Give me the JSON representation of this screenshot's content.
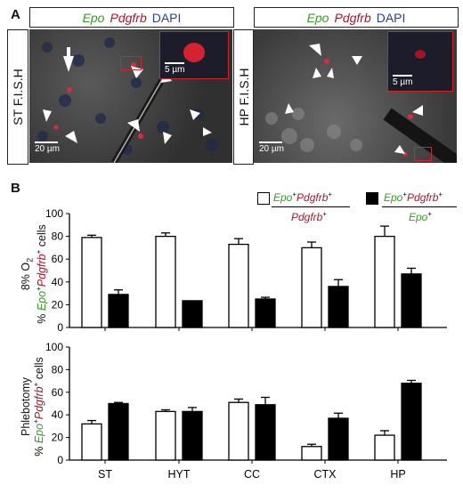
{
  "figure": {
    "panel_a": "A",
    "panel_b": "B",
    "caption": {
      "epo": "Epo",
      "pdgfrb": "Pdgfrb",
      "dapi": "DAPI"
    },
    "left_label": "ST F.I.S.H",
    "right_label": "HP F.I.S.H",
    "scale_large": "20 µm",
    "scale_small": "5 µm"
  },
  "legend": {
    "white": {
      "num_epo": "Epo",
      "num_sup1": "+",
      "num_pdg": "Pdgfrb",
      "num_sup2": "+",
      "den": "Pdgfrb",
      "den_sup": "+"
    },
    "black": {
      "num_epo": "Epo",
      "num_sup1": "+",
      "num_pdg": "Pdgfrb",
      "num_sup2": "+",
      "den": "Epo",
      "den_sup": "+"
    }
  },
  "chart_data": [
    {
      "type": "bar",
      "condition": "8% O",
      "condition_sub": "2",
      "ylabel_pct": "%",
      "ylabel_epo": "Epo",
      "ylabel_sup1": "+",
      "ylabel_pdg": "Pdgfrb",
      "ylabel_sup2": "+",
      "ylabel_suffix": "cells",
      "ylim": [
        0,
        100
      ],
      "yticks": [
        "0",
        "20",
        "40",
        "60",
        "80",
        "100"
      ],
      "categories": [
        "ST",
        "HYT",
        "CC",
        "CTX",
        "HP"
      ],
      "series": [
        {
          "values": [
            79,
            80,
            73,
            70,
            80
          ],
          "errors": [
            2,
            3,
            5,
            5,
            9
          ],
          "color": "#ffffff"
        },
        {
          "values": [
            29,
            23.5,
            25,
            36,
            47
          ],
          "errors": [
            4,
            0,
            1.5,
            6,
            5
          ],
          "color": "#000000"
        }
      ]
    },
    {
      "type": "bar",
      "condition": "Phlebotomy",
      "ylabel_pct": "%",
      "ylabel_epo": "Epo",
      "ylabel_sup1": "+",
      "ylabel_pdg": "Pdgfrb",
      "ylabel_sup2": "+",
      "ylabel_suffix": "cells",
      "ylim": [
        0,
        100
      ],
      "yticks": [
        "0",
        "20",
        "40",
        "60",
        "80",
        "100"
      ],
      "categories": [
        "ST",
        "HYT",
        "CC",
        "CTX",
        "HP"
      ],
      "series": [
        {
          "values": [
            32,
            43,
            51,
            12,
            22
          ],
          "errors": [
            3,
            1.5,
            3,
            2,
            4
          ],
          "color": "#ffffff"
        },
        {
          "values": [
            50,
            43,
            49,
            37,
            68
          ],
          "errors": [
            1,
            3.5,
            6.5,
            4.5,
            2.5
          ],
          "color": "#000000"
        }
      ]
    }
  ]
}
